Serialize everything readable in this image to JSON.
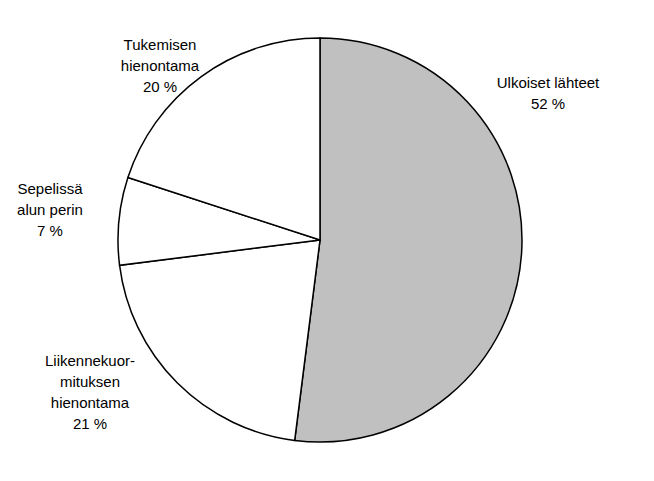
{
  "chart_data": {
    "type": "pie",
    "categories": [
      "Ulkoiset lähteet",
      "Liikennekuor-\nmituksen\nhienontama",
      "Sepelissä\nalun perin",
      "Tukemisen\nhienontama"
    ],
    "values": [
      52,
      21,
      7,
      20
    ],
    "value_labels": [
      "52 %",
      "21 %",
      "7 %",
      "20 %"
    ],
    "colors": [
      "#c0c0c0",
      "#ffffff",
      "#ffffff",
      "#ffffff"
    ],
    "data_labels": true
  }
}
